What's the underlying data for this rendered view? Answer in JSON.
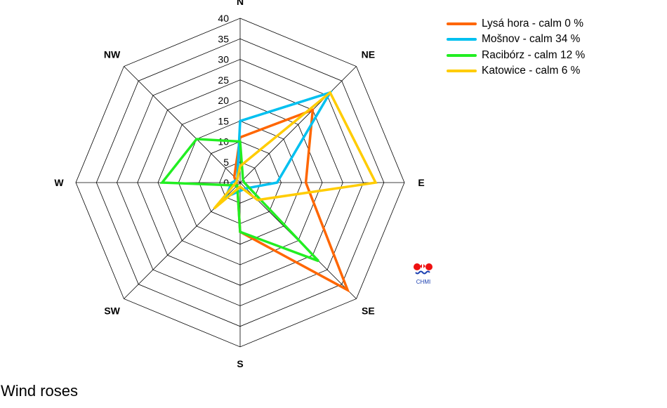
{
  "caption": "Wind roses",
  "logo_text": "CHMI",
  "chart_data": {
    "type": "radar",
    "directions": [
      "N",
      "NE",
      "E",
      "SE",
      "S",
      "SW",
      "W",
      "NW"
    ],
    "rticks": [
      0,
      5,
      10,
      15,
      20,
      25,
      30,
      35,
      40
    ],
    "rlim": [
      0,
      40
    ],
    "legend_position": "top-right",
    "series": [
      {
        "name": "Lysá hora - calm 0 %",
        "color": "#ff6600",
        "values": [
          11,
          25,
          16,
          37,
          12,
          1,
          1,
          2
        ]
      },
      {
        "name": "Mošnov - calm 34 %",
        "color": "#00c0f0",
        "values": [
          15,
          31,
          9,
          2,
          2,
          5,
          2,
          1
        ]
      },
      {
        "name": "Racibórz - calm 12 %",
        "color": "#22ee22",
        "values": [
          10,
          1,
          1,
          27,
          12,
          1,
          19,
          15
        ]
      },
      {
        "name": "Katowice - calm 6 %",
        "color": "#ffcc00",
        "values": [
          4,
          31,
          33,
          6,
          1,
          9,
          1,
          1
        ]
      }
    ]
  }
}
